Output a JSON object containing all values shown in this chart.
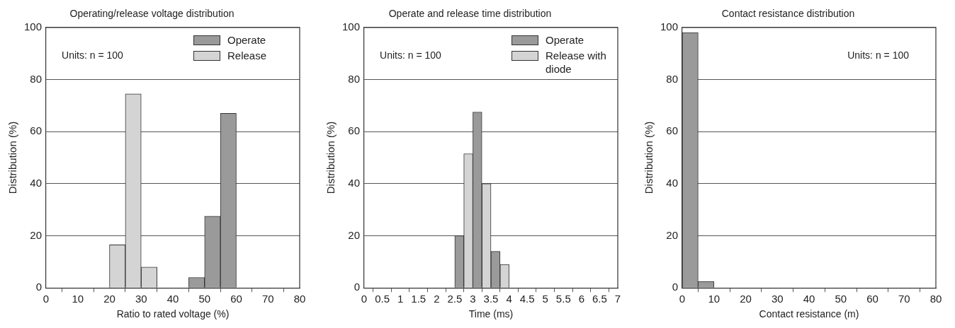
{
  "chart_data": [
    {
      "type": "histogram",
      "title": "Operating/release voltage distribution",
      "xlabel": "Ratio to rated voltage (%)",
      "ylabel": "Distribution (%)",
      "annotations": [
        "Units: n = 100"
      ],
      "bins": [
        20,
        25,
        30,
        35,
        40,
        45,
        50,
        55,
        60
      ],
      "series": [
        {
          "name": "Operate",
          "color": "#9a9a9a",
          "values": [
            0,
            0,
            0,
            0,
            0,
            4,
            27.5,
            67
          ]
        },
        {
          "name": "Release",
          "color": "#d4d4d4",
          "values": [
            16.5,
            74.5,
            8,
            0,
            0,
            0,
            0,
            0
          ]
        }
      ],
      "xlim": [
        0,
        80
      ],
      "xticks": [
        0,
        10,
        20,
        30,
        40,
        50,
        60,
        70,
        80
      ],
      "ylim": [
        0,
        100
      ],
      "yticks": [
        0,
        20,
        40,
        60,
        80,
        100
      ],
      "grid": "y",
      "legend": "top right"
    },
    {
      "type": "histogram",
      "title": "Operate and release time distribution",
      "xlabel": "Time (ms)",
      "ylabel": "Distribution (%)",
      "annotations": [
        "Units: n = 100"
      ],
      "bins": [
        2.5,
        2.75,
        3,
        3.25,
        3.5,
        3.75,
        4
      ],
      "series": [
        {
          "name": "Operate",
          "color": "#9a9a9a",
          "values": [
            20,
            0,
            67.5,
            0,
            14,
            0
          ]
        },
        {
          "name": "Release with diode",
          "color": "#d4d4d4",
          "values": [
            0,
            51.5,
            0,
            40,
            0,
            9
          ]
        }
      ],
      "xlim": [
        0,
        7
      ],
      "xticks": [
        0,
        0.5,
        1,
        1.5,
        2,
        2.5,
        3,
        3.5,
        4,
        4.5,
        5,
        5.5,
        6,
        6.5,
        7
      ],
      "ylim": [
        0,
        100
      ],
      "yticks": [
        0,
        20,
        40,
        60,
        80,
        100
      ],
      "grid": "y",
      "legend": "top right"
    },
    {
      "type": "histogram",
      "title": "Contact resistance distribution",
      "xlabel": "Contact resistance (m)",
      "ylabel": "Distribution (%)",
      "annotations": [
        "Units: n = 100"
      ],
      "bins": [
        0,
        5,
        10
      ],
      "series": [
        {
          "color": "#9a9a9a",
          "values": [
            98,
            2.5
          ]
        }
      ],
      "xlim": [
        0,
        80
      ],
      "xticks": [
        0,
        10,
        20,
        30,
        40,
        50,
        60,
        70,
        80
      ],
      "ylim": [
        0,
        100
      ],
      "yticks": [
        0,
        20,
        40,
        60,
        80,
        100
      ],
      "grid": "y",
      "legend": false
    }
  ]
}
